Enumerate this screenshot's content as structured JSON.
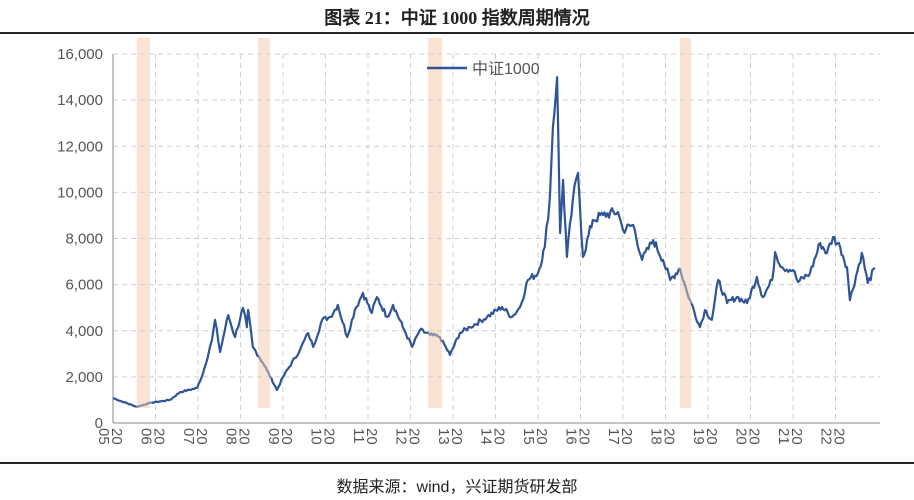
{
  "title": "图表 21：中证 1000 指数周期情况",
  "source": "数据来源：wind，兴证期货研发部",
  "colors": {
    "line": "#2f5597",
    "line_in_band": "#8a90aa",
    "band": "#fbe3d4",
    "grid": "#d0d0d0"
  },
  "chart_data": {
    "type": "line",
    "title": "",
    "xlabel": "",
    "ylabel": "",
    "ylim": [
      0,
      16000
    ],
    "xlim": [
      2005,
      2023
    ],
    "y_ticks": [
      "0",
      "2,000",
      "4,000",
      "6,000",
      "8,000",
      "10,000",
      "12,000",
      "14,000",
      "16,000"
    ],
    "x_ticks": [
      "2005",
      "2006",
      "2007",
      "2008",
      "2009",
      "2010",
      "2011",
      "2012",
      "2013",
      "2014",
      "2015",
      "2016",
      "2017",
      "2018",
      "2019",
      "2020",
      "2021",
      "2022"
    ],
    "grid": true,
    "legend_position": "top-center",
    "highlight_bands": [
      [
        2005.56,
        2005.87
      ],
      [
        2008.41,
        2008.69
      ],
      [
        2012.41,
        2012.74
      ],
      [
        2018.34,
        2018.6
      ]
    ],
    "series": [
      {
        "name": "中证1000",
        "points": [
          [
            2005.0,
            1080
          ],
          [
            2005.56,
            700
          ],
          [
            2005.87,
            870
          ],
          [
            2006.34,
            1000
          ],
          [
            2006.58,
            1340
          ],
          [
            2006.98,
            1520
          ],
          [
            2007.12,
            2170
          ],
          [
            2007.33,
            3600
          ],
          [
            2007.4,
            4470
          ],
          [
            2007.52,
            3080
          ],
          [
            2007.71,
            4680
          ],
          [
            2007.87,
            3730
          ],
          [
            2008.06,
            4990
          ],
          [
            2008.15,
            4160
          ],
          [
            2008.18,
            4900
          ],
          [
            2008.29,
            3300
          ],
          [
            2008.53,
            2600
          ],
          [
            2008.62,
            2300
          ],
          [
            2008.86,
            1430
          ],
          [
            2009.0,
            2000
          ],
          [
            2009.4,
            3170
          ],
          [
            2009.59,
            3900
          ],
          [
            2009.71,
            3300
          ],
          [
            2009.92,
            4470
          ],
          [
            2010.11,
            4600
          ],
          [
            2010.29,
            5120
          ],
          [
            2010.51,
            3730
          ],
          [
            2010.69,
            4900
          ],
          [
            2010.88,
            5640
          ],
          [
            2011.09,
            4770
          ],
          [
            2011.21,
            5460
          ],
          [
            2011.45,
            4600
          ],
          [
            2011.59,
            5120
          ],
          [
            2011.82,
            4160
          ],
          [
            2012.04,
            3300
          ],
          [
            2012.22,
            4030
          ],
          [
            2012.46,
            3820
          ],
          [
            2012.69,
            3730
          ],
          [
            2012.93,
            2950
          ],
          [
            2013.16,
            3900
          ],
          [
            2013.4,
            4160
          ],
          [
            2013.8,
            4600
          ],
          [
            2014.15,
            5030
          ],
          [
            2014.39,
            4600
          ],
          [
            2014.58,
            5030
          ],
          [
            2014.76,
            6200
          ],
          [
            2015.0,
            6500
          ],
          [
            2015.16,
            7630
          ],
          [
            2015.28,
            9800
          ],
          [
            2015.35,
            12830
          ],
          [
            2015.45,
            15000
          ],
          [
            2015.47,
            13140
          ],
          [
            2015.52,
            8240
          ],
          [
            2015.59,
            10540
          ],
          [
            2015.68,
            7200
          ],
          [
            2015.82,
            9670
          ],
          [
            2015.94,
            10840
          ],
          [
            2016.06,
            7200
          ],
          [
            2016.29,
            8800
          ],
          [
            2016.53,
            9020
          ],
          [
            2016.88,
            9150
          ],
          [
            2017.0,
            8370
          ],
          [
            2017.24,
            8590
          ],
          [
            2017.45,
            7070
          ],
          [
            2017.71,
            7930
          ],
          [
            2017.94,
            7070
          ],
          [
            2018.11,
            6200
          ],
          [
            2018.34,
            6720
          ],
          [
            2018.51,
            5640
          ],
          [
            2018.58,
            5330
          ],
          [
            2018.81,
            4160
          ],
          [
            2018.93,
            4900
          ],
          [
            2019.09,
            4470
          ],
          [
            2019.24,
            6200
          ],
          [
            2019.45,
            5200
          ],
          [
            2019.68,
            5460
          ],
          [
            2019.92,
            5200
          ],
          [
            2020.15,
            6330
          ],
          [
            2020.29,
            5460
          ],
          [
            2020.51,
            6200
          ],
          [
            2020.58,
            7410
          ],
          [
            2020.74,
            6760
          ],
          [
            2021.0,
            6630
          ],
          [
            2021.12,
            6110
          ],
          [
            2021.4,
            6500
          ],
          [
            2021.64,
            7800
          ],
          [
            2021.8,
            7370
          ],
          [
            2021.94,
            8060
          ],
          [
            2022.11,
            7630
          ],
          [
            2022.27,
            6760
          ],
          [
            2022.34,
            5330
          ],
          [
            2022.62,
            7370
          ],
          [
            2022.76,
            6070
          ],
          [
            2022.93,
            6720
          ]
        ]
      }
    ]
  }
}
